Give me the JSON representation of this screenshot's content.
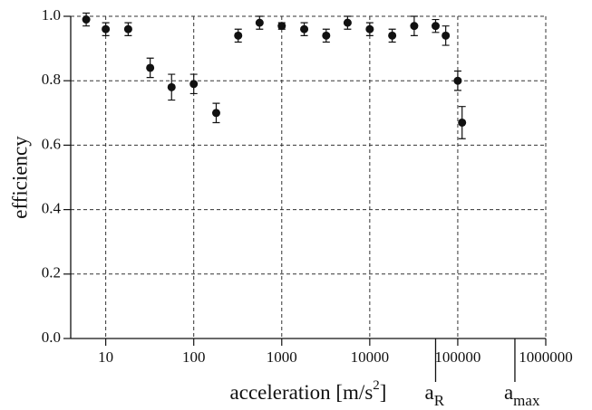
{
  "chart_data": {
    "type": "scatter",
    "xlabel": "acceleration [m/s",
    "xlabel_sup": "2",
    "xlabel_tail": "]",
    "ylabel": "efficiency",
    "xscale": "log",
    "x": [
      6,
      10,
      18,
      32,
      56,
      100,
      180,
      320,
      560,
      1000,
      1800,
      3200,
      5600,
      10000,
      18000,
      32000,
      56000,
      73000,
      100000,
      112000
    ],
    "series": [
      {
        "color": "#111111",
        "values": [
          0.99,
          0.96,
          0.96,
          0.84,
          0.78,
          0.79,
          0.7,
          0.94,
          0.98,
          0.97,
          0.96,
          0.94,
          0.98,
          0.96,
          0.94,
          0.97,
          0.97,
          0.94,
          0.8,
          0.67
        ],
        "errors": [
          0.02,
          0.02,
          0.02,
          0.03,
          0.04,
          0.03,
          0.03,
          0.02,
          0.02,
          0.01,
          0.02,
          0.02,
          0.02,
          0.02,
          0.02,
          0.03,
          0.02,
          0.03,
          0.03,
          0.05
        ]
      }
    ],
    "xlim": [
      4,
      1000000
    ],
    "ylim": [
      0,
      1
    ],
    "xticks": [
      10,
      100,
      1000,
      10000,
      100000,
      1000000
    ],
    "yticks": [
      {
        "value": 0,
        "label": "0.0"
      },
      {
        "value": 0.2,
        "label": "0.2"
      },
      {
        "value": 0.4,
        "label": "0.4"
      },
      {
        "value": 0.6,
        "label": "0.6"
      },
      {
        "value": 0.8,
        "label": "0.8"
      },
      {
        "value": 1,
        "label": "1.0"
      }
    ],
    "grid": true,
    "annotations": [
      {
        "x": 56000,
        "text": "a",
        "sub": "R"
      },
      {
        "x": 446000,
        "text": "a",
        "sub": "max"
      }
    ]
  }
}
